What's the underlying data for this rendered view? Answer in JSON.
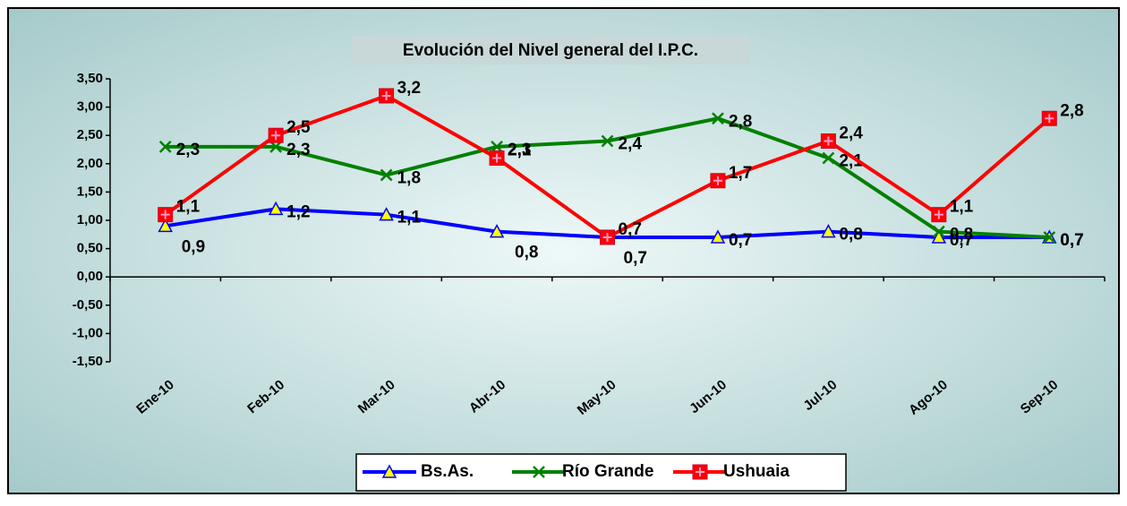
{
  "chart_data": {
    "type": "line",
    "title": "Evolución del Nivel general del I.P.C.",
    "categories": [
      "Ene-10",
      "Feb-10",
      "Mar-10",
      "Abr-10",
      "May-10",
      "Jun-10",
      "Jul-10",
      "Ago-10",
      "Sep-10"
    ],
    "series": [
      {
        "name": "Bs.As.",
        "color": "#0000ff",
        "values": [
          0.9,
          1.2,
          1.1,
          0.8,
          0.7,
          0.7,
          0.8,
          0.7,
          0.7
        ],
        "value_labels": [
          "0,9",
          "1,2",
          "1,1",
          "0,8",
          "0,7",
          "0,7",
          "0,8",
          "0,7",
          "0,7"
        ]
      },
      {
        "name": "Río Grande",
        "color": "#008000",
        "values": [
          2.3,
          2.3,
          1.8,
          2.3,
          2.4,
          2.8,
          2.1,
          0.8,
          0.7
        ],
        "value_labels": [
          "2,3",
          "2,3",
          "1,8",
          "2,3",
          "2,4",
          "2,8",
          "2,1",
          "0,8",
          "0,7"
        ]
      },
      {
        "name": "Ushuaia",
        "color": "#ff0000",
        "values": [
          1.1,
          2.5,
          3.2,
          2.1,
          0.7,
          1.7,
          2.4,
          1.1,
          2.8
        ],
        "value_labels": [
          "1,1",
          "2,5",
          "3,2",
          "2,1",
          "0,7",
          "1,7",
          "2,4",
          "1,1",
          "2,8"
        ]
      }
    ],
    "ylim": [
      -1.5,
      3.5
    ],
    "yticks": [
      {
        "value": -1.5,
        "label": "-1,50"
      },
      {
        "value": -1,
        "label": "-1,00"
      },
      {
        "value": -0.5,
        "label": "-0,50"
      },
      {
        "value": 0,
        "label": "0,00"
      },
      {
        "value": 0.5,
        "label": "0,50"
      },
      {
        "value": 1,
        "label": "1,00"
      },
      {
        "value": 1.5,
        "label": "1,50"
      },
      {
        "value": 2,
        "label": "2,00"
      },
      {
        "value": 2.5,
        "label": "2,50"
      },
      {
        "value": 3,
        "label": "3,00"
      },
      {
        "value": 3.5,
        "label": "3,50"
      }
    ],
    "legend": "bottom"
  }
}
